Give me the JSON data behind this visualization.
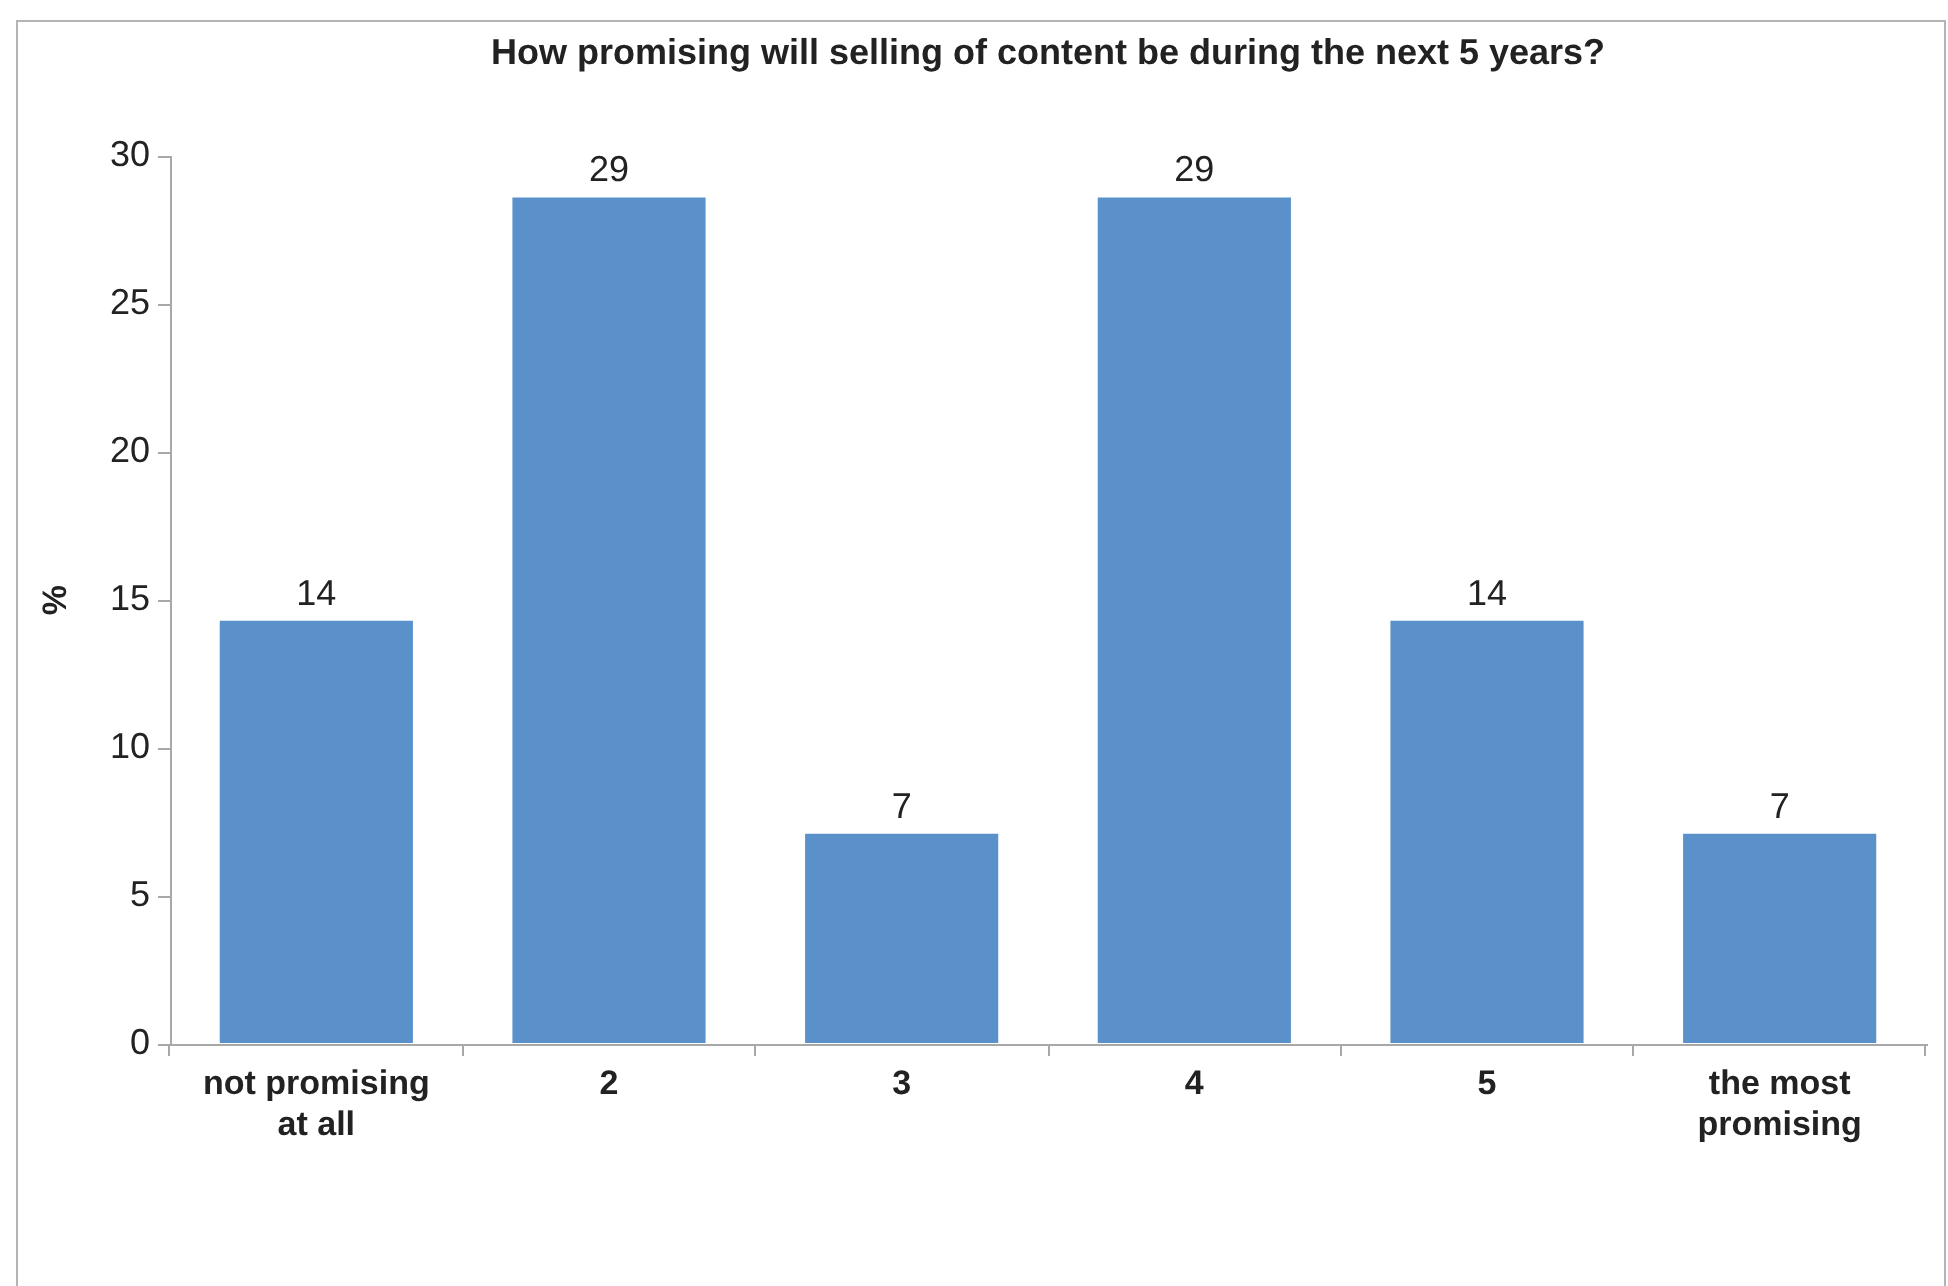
{
  "chart_data": {
    "type": "bar",
    "title": "How promising will selling of content be during the next 5 years?",
    "ylabel": "%",
    "categories": [
      "not promising at all",
      "2",
      "3",
      "4",
      "5",
      "the most promising"
    ],
    "values": [
      14.3,
      28.6,
      7.1,
      28.6,
      14.3,
      7.1
    ],
    "value_labels": [
      "14",
      "29",
      "7",
      "29",
      "14",
      "7"
    ],
    "color": "#5a91cb",
    "ylim": [
      0,
      30
    ],
    "yticks": [
      0,
      5,
      10,
      15,
      20,
      25,
      30
    ],
    "grid": false
  }
}
